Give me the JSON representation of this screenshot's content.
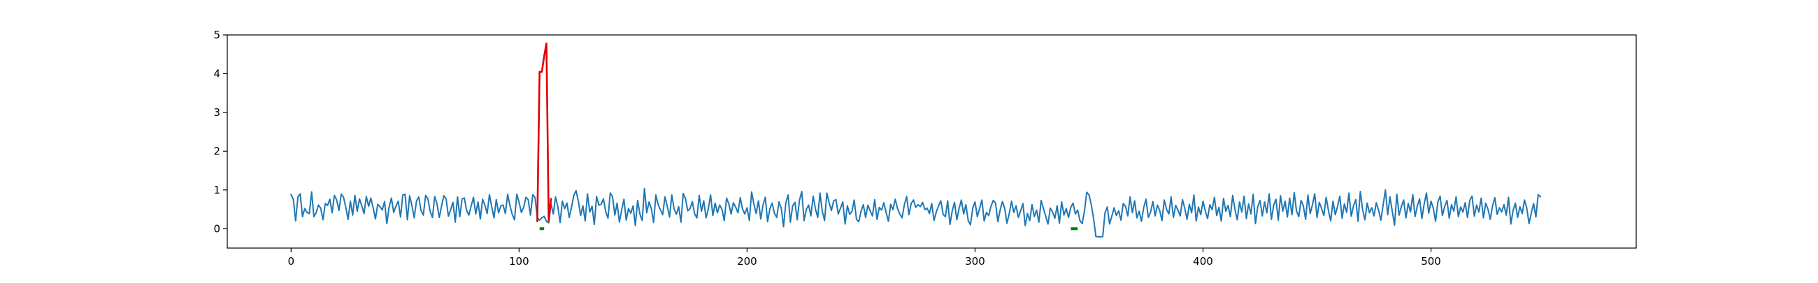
{
  "chart_data": {
    "type": "line",
    "title": "",
    "xlabel": "",
    "ylabel": "",
    "xlim": [
      -28.0,
      590.0
    ],
    "ylim": [
      -0.5,
      5.0
    ],
    "xticks": [
      0,
      100,
      200,
      300,
      400,
      500
    ],
    "yticks": [
      0,
      1,
      2,
      3,
      4,
      5
    ],
    "grid": false,
    "legend": "none",
    "x_start": 0,
    "series": [
      {
        "role": "signal",
        "color": "#1f77b4",
        "x_start": 0,
        "values": [
          0.88,
          0.75,
          0.2,
          0.82,
          0.9,
          0.31,
          0.52,
          0.42,
          0.39,
          0.95,
          0.31,
          0.41,
          0.61,
          0.53,
          0.23,
          0.65,
          0.6,
          0.76,
          0.41,
          0.86,
          0.74,
          0.47,
          0.89,
          0.81,
          0.55,
          0.24,
          0.71,
          0.35,
          0.86,
          0.45,
          0.77,
          0.59,
          0.39,
          0.83,
          0.58,
          0.79,
          0.54,
          0.25,
          0.63,
          0.57,
          0.48,
          0.7,
          0.13,
          0.56,
          0.79,
          0.42,
          0.58,
          0.71,
          0.3,
          0.87,
          0.89,
          0.23,
          0.85,
          0.6,
          0.28,
          0.71,
          0.82,
          0.47,
          0.35,
          0.86,
          0.77,
          0.45,
          0.29,
          0.83,
          0.64,
          0.29,
          0.58,
          0.85,
          0.77,
          0.32,
          0.49,
          0.68,
          0.17,
          0.82,
          0.31,
          0.77,
          0.79,
          0.47,
          0.35,
          0.59,
          0.81,
          0.38,
          0.69,
          0.25,
          0.76,
          0.61,
          0.39,
          0.88,
          0.57,
          0.28,
          0.75,
          0.41,
          0.59,
          0.61,
          0.39,
          0.89,
          0.59,
          0.37,
          0.23,
          0.89,
          0.68,
          0.42,
          0.55,
          0.81,
          0.75,
          0.35,
          0.88,
          0.8,
          0.28,
          0.22,
          0.28,
          0.32,
          0.19,
          0.15,
          0.65,
          0.38,
          0.82,
          0.57,
          0.16,
          0.71,
          0.52,
          0.66,
          0.29,
          0.55,
          0.86,
          0.98,
          0.71,
          0.34,
          0.59,
          0.2,
          0.9,
          0.43,
          0.58,
          0.11,
          0.83,
          0.61,
          0.63,
          0.77,
          0.44,
          0.27,
          0.92,
          0.82,
          0.35,
          0.66,
          0.17,
          0.48,
          0.76,
          0.22,
          0.52,
          0.4,
          0.59,
          0.08,
          0.73,
          0.38,
          0.21,
          1.04,
          0.41,
          0.69,
          0.52,
          0.16,
          0.87,
          0.62,
          0.49,
          0.36,
          0.82,
          0.58,
          0.3,
          0.87,
          0.51,
          0.37,
          0.57,
          0.17,
          0.91,
          0.77,
          0.46,
          0.52,
          0.7,
          0.38,
          0.28,
          0.86,
          0.45,
          0.72,
          0.28,
          0.51,
          0.87,
          0.34,
          0.66,
          0.41,
          0.61,
          0.5,
          0.21,
          0.79,
          0.64,
          0.38,
          0.67,
          0.56,
          0.41,
          0.8,
          0.51,
          0.38,
          0.54,
          0.21,
          0.95,
          0.63,
          0.39,
          0.72,
          0.25,
          0.61,
          0.81,
          0.18,
          0.51,
          0.66,
          0.4,
          0.29,
          0.69,
          0.53,
          0.05,
          0.67,
          0.87,
          0.17,
          0.59,
          0.68,
          0.23,
          0.74,
          0.96,
          0.21,
          0.5,
          0.61,
          0.33,
          0.84,
          0.51,
          0.29,
          0.92,
          0.45,
          0.21,
          0.92,
          0.67,
          0.47,
          0.72,
          0.75,
          0.38,
          0.53,
          0.69,
          0.12,
          0.59,
          0.37,
          0.44,
          0.74,
          0.24,
          0.18,
          0.45,
          0.62,
          0.29,
          0.61,
          0.46,
          0.33,
          0.75,
          0.24,
          0.55,
          0.48,
          0.67,
          0.42,
          0.19,
          0.63,
          0.49,
          0.76,
          0.52,
          0.38,
          0.28,
          0.62,
          0.83,
          0.36,
          0.65,
          0.74,
          0.55,
          0.62,
          0.57,
          0.68,
          0.49,
          0.53,
          0.39,
          0.65,
          0.21,
          0.43,
          0.59,
          0.72,
          0.37,
          0.31,
          0.72,
          0.11,
          0.46,
          0.68,
          0.23,
          0.52,
          0.74,
          0.38,
          0.62,
          0.21,
          0.1,
          0.53,
          0.69,
          0.31,
          0.52,
          0.74,
          0.2,
          0.42,
          0.34,
          0.58,
          0.73,
          0.66,
          0.18,
          0.48,
          0.7,
          0.53,
          0.14,
          0.39,
          0.71,
          0.42,
          0.59,
          0.29,
          0.46,
          0.65,
          0.08,
          0.39,
          0.21,
          0.62,
          0.31,
          0.48,
          0.17,
          0.73,
          0.52,
          0.32,
          0.12,
          0.53,
          0.43,
          0.27,
          0.59,
          0.14,
          0.69,
          0.35,
          0.52,
          0.29,
          0.55,
          0.66,
          0.38,
          0.48,
          0.21,
          0.13,
          0.46,
          0.94,
          0.87,
          0.61,
          0.26,
          -0.2,
          -0.21,
          -0.21,
          -0.21,
          0.41,
          0.56,
          0.12,
          0.32,
          0.54,
          0.34,
          0.46,
          0.22,
          0.65,
          0.58,
          0.33,
          0.82,
          0.41,
          0.72,
          0.28,
          0.45,
          0.19,
          0.55,
          0.76,
          0.29,
          0.43,
          0.7,
          0.33,
          0.61,
          0.47,
          0.21,
          0.74,
          0.5,
          0.38,
          0.82,
          0.29,
          0.6,
          0.48,
          0.33,
          0.75,
          0.52,
          0.24,
          0.63,
          0.41,
          0.87,
          0.2,
          0.56,
          0.36,
          0.71,
          0.46,
          0.26,
          0.62,
          0.49,
          0.81,
          0.34,
          0.55,
          0.2,
          0.78,
          0.45,
          0.6,
          0.31,
          0.86,
          0.5,
          0.23,
          0.69,
          0.43,
          0.84,
          0.26,
          0.64,
          0.38,
          0.89,
          0.13,
          0.57,
          0.73,
          0.33,
          0.69,
          0.41,
          0.9,
          0.24,
          0.61,
          0.76,
          0.22,
          0.85,
          0.45,
          0.71,
          0.3,
          0.79,
          0.36,
          0.93,
          0.46,
          0.31,
          0.73,
          0.59,
          0.24,
          0.87,
          0.39,
          0.62,
          0.9,
          0.29,
          0.68,
          0.52,
          0.34,
          0.81,
          0.47,
          0.2,
          0.71,
          0.36,
          0.57,
          0.84,
          0.27,
          0.64,
          0.42,
          0.92,
          0.32,
          0.59,
          0.75,
          0.19,
          0.96,
          0.49,
          0.23,
          0.66,
          0.41,
          0.54,
          0.33,
          0.67,
          0.48,
          0.22,
          0.61,
          1.0,
          0.36,
          0.82,
          0.45,
          0.09,
          0.89,
          0.35,
          0.57,
          0.74,
          0.28,
          0.65,
          0.43,
          0.88,
          0.31,
          0.59,
          0.77,
          0.26,
          0.64,
          0.92,
          0.4,
          0.71,
          0.53,
          0.19,
          0.69,
          0.84,
          0.34,
          0.57,
          0.73,
          0.27,
          0.62,
          0.45,
          0.82,
          0.31,
          0.56,
          0.43,
          0.67,
          0.29,
          0.73,
          0.84,
          0.32,
          0.61,
          0.43,
          0.79,
          0.28,
          0.66,
          0.5,
          0.24,
          0.59,
          0.8,
          0.37,
          0.54,
          0.43,
          0.62,
          0.35,
          0.81,
          0.12,
          0.47,
          0.66,
          0.29,
          0.57,
          0.39,
          0.74,
          0.53,
          0.13,
          0.41,
          0.65,
          0.3,
          0.88,
          0.82
        ]
      },
      {
        "role": "anomaly-highlight",
        "color": "#e00000",
        "x": [
          108,
          109,
          110,
          111,
          112,
          113,
          114
        ],
        "values": [
          0.19,
          4.05,
          4.05,
          4.45,
          4.78,
          0.19,
          0.77
        ]
      },
      {
        "role": "marker-segment",
        "color": "#008000",
        "x": [
          109,
          111
        ],
        "values": [
          0.0,
          0.0
        ]
      },
      {
        "role": "marker-segment",
        "color": "#008000",
        "x": [
          342,
          345
        ],
        "values": [
          0.0,
          0.0
        ]
      }
    ]
  }
}
